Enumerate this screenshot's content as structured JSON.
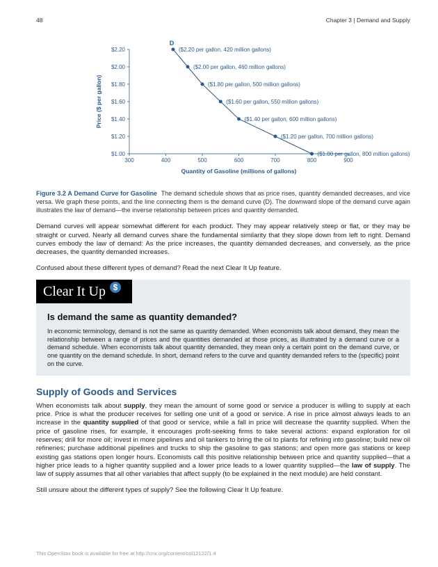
{
  "header": {
    "page_number": "48",
    "chapter": "Chapter 3 | Demand and Supply"
  },
  "chart": {
    "type": "scatter-line",
    "series_label": "D",
    "x_axis": {
      "label": "Quantity of Gasoline (millions of gallons)",
      "ticks": [
        300,
        400,
        500,
        600,
        700,
        800,
        900
      ],
      "color": "#2b5a8a"
    },
    "y_axis": {
      "label": "Price ($ per gallon)",
      "ticks": [
        "$1.00",
        "$1.20",
        "$1.40",
        "$1.60",
        "$1.80",
        "$2.00",
        "$2.20"
      ],
      "color": "#2b5a8a"
    },
    "points": [
      {
        "q": 420,
        "p": 2.2,
        "label": "($2.20 per gallon, 420 million gallons)"
      },
      {
        "q": 460,
        "p": 2.0,
        "label": "($2.00 per gallon, 460 million gallons)"
      },
      {
        "q": 500,
        "p": 1.8,
        "label": "($1.80 per gallon, 500 million gallons)"
      },
      {
        "q": 550,
        "p": 1.6,
        "label": "($1.60 per gallon, 550 million gallons)"
      },
      {
        "q": 600,
        "p": 1.4,
        "label": "($1.40 per gallon, 600 million gallons)"
      },
      {
        "q": 700,
        "p": 1.2,
        "label": "($1.20 per gallon, 700 million gallons)"
      },
      {
        "q": 800,
        "p": 1.0,
        "label": "($1.00 per gallon, 800 million gallons)"
      }
    ],
    "colors": {
      "axis": "#5a7a9a",
      "text": "#2b5a8a",
      "marker": "#2b5a8a",
      "line": "#2b5a8a",
      "bg": "#ffffff"
    },
    "marker_radius": 2.5,
    "line_width": 1,
    "font_size_ticks": 8,
    "font_size_axis_label": 8.5,
    "font_size_point_label": 8
  },
  "figure_caption": {
    "title": "Figure 3.2 A Demand Curve for Gasoline",
    "text": "The demand schedule shows that as price rises, quantity demanded decreases, and vice versa. We graph these points, and the line connecting them is the demand curve (D). The downward slope of the demand curve again illustrates the law of demand—the inverse relationship between prices and quantity demanded."
  },
  "body1": "Demand curves will appear somewhat different for each product. They may appear relatively steep or flat, or they may be straight or curved. Nearly all demand curves share the fundamental similarity that they slope down from left to right. Demand curves embody the law of demand: As the price increases, the quantity demanded decreases, and conversely, as the price decreases, the quantity demanded increases.",
  "body2": "Confused about these different types of demand? Read the next Clear It Up feature.",
  "clearitup": {
    "banner": "Clear It Up",
    "dollar": "$",
    "heading": "Is demand the same as quantity demanded?",
    "text": "In economic terminology, demand is not the same as quantity demanded. When economists talk about demand, they mean the relationship between a range of prices and the quantities demanded at those prices, as illustrated by a demand curve or a demand schedule. When economists talk about quantity demanded, they mean only a certain point on the demand curve, or one quantity on the demand schedule. In short, demand refers to the curve and quantity demanded refers to the (specific) point on the curve."
  },
  "section_heading": "Supply of Goods and Services",
  "supply_para": {
    "t1": "When economists talk about ",
    "b1": "supply",
    "t2": ", they mean the amount of some good or service a producer is willing to supply at each price. Price is what the producer receives for selling one unit of a good or service. A rise in price almost always leads to an increase in the ",
    "b2": "quantity supplied",
    "t3": " of that good or service, while a fall in price will decrease the quantity supplied. When the price of gasoline rises, for example, it encourages profit-seeking firms to take several actions: expand exploration for oil reserves; drill for more oil; invest in more pipelines and oil tankers to bring the oil to plants for refining into gasoline; build new oil refineries; purchase additional pipelines and trucks to ship the gasoline to gas stations; and open more gas stations or keep existing gas stations open longer hours. Economists call this positive relationship between price and quantity supplied—that a higher price leads to a higher quantity supplied and a lower price leads to a lower quantity supplied—the ",
    "b3": "law of supply",
    "t4": ". The law of supply assumes that all other variables that affect supply (to be explained in the next module) are held constant."
  },
  "body3": "Still unsure about the different types of supply? See the following Clear It Up feature.",
  "footer": "This OpenStax book is available for free at http://cnx.org/content/col12122/1.4"
}
